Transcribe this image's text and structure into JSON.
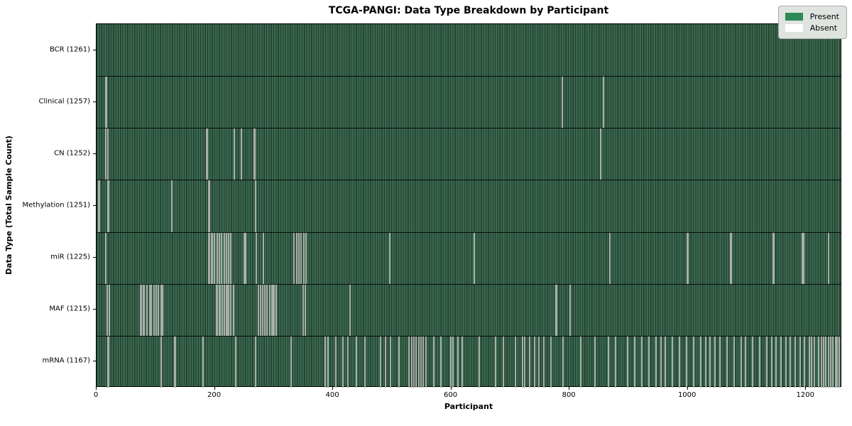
{
  "colors": {
    "present": "#2e8b57",
    "absent": "#ffffff",
    "stripe_light": "#3a684e",
    "stripe_dark": "#213e2e",
    "absent_line": "#a9afa9",
    "legend_bg": "#e0e4e0",
    "legend_border": "#a8aca8"
  },
  "chart_data": {
    "type": "heatmap",
    "title": "TCGA-PANGI: Data Type Breakdown by Participant",
    "xlabel": "Participant",
    "ylabel": "Data Type (Total Sample Count)",
    "x_range": [
      0,
      1261
    ],
    "x_ticks": [
      0,
      200,
      400,
      600,
      800,
      1000,
      1200
    ],
    "grid": false,
    "legend_position": "upper right",
    "legend": {
      "items": [
        {
          "label": "Present",
          "color": "#2e8b57"
        },
        {
          "label": "Absent",
          "color": "#ffffff"
        }
      ]
    },
    "categories": [
      "BCR (1261)",
      "Clinical (1257)",
      "CN (1252)",
      "Methylation (1251)",
      "miR (1225)",
      "MAF (1215)",
      "mRNA (1167)"
    ],
    "series": [
      {
        "name": "BCR",
        "total": 1261,
        "label": "BCR (1261)",
        "absent": []
      },
      {
        "name": "Clinical",
        "total": 1257,
        "label": "Clinical (1257)",
        "absent": [
          16,
          17,
          789,
          859
        ]
      },
      {
        "name": "CN",
        "total": 1252,
        "label": "CN (1252)",
        "absent": [
          16,
          19,
          187,
          188,
          234,
          246,
          267,
          268,
          854
        ]
      },
      {
        "name": "Methylation",
        "total": 1251,
        "label": "Methylation (1251)",
        "absent": [
          4,
          5,
          19,
          20,
          127,
          128,
          190,
          191,
          269,
          270
        ]
      },
      {
        "name": "miR",
        "total": 1225,
        "label": "miR (1225)",
        "absent": [
          16,
          190,
          191,
          195,
          196,
          200,
          204,
          208,
          212,
          216,
          220,
          224,
          228,
          250,
          253,
          271,
          283,
          335,
          339,
          343,
          347,
          351,
          355,
          497,
          640,
          870,
          1001,
          1002,
          1075,
          1076,
          1147,
          1148,
          1196,
          1197,
          1199,
          1240
        ]
      },
      {
        "name": "MAF",
        "total": 1215,
        "label": "MAF (1215)",
        "absent": [
          18,
          22,
          75,
          76,
          80,
          81,
          85,
          86,
          90,
          93,
          97,
          101,
          105,
          109,
          110,
          111,
          112,
          203,
          204,
          208,
          209,
          213,
          217,
          220,
          221,
          224,
          228,
          232,
          274,
          278,
          281,
          282,
          285,
          289,
          293,
          297,
          300,
          301,
          304,
          350,
          354,
          429,
          430,
          779,
          780,
          803
        ]
      },
      {
        "name": "mRNA",
        "total": 1167,
        "label": "mRNA (1167)",
        "absent": [
          19,
          20,
          109,
          132,
          133,
          181,
          236,
          270,
          330,
          388,
          392,
          405,
          418,
          426,
          440,
          455,
          481,
          490,
          498,
          512,
          530,
          534,
          538,
          542,
          546,
          550,
          554,
          558,
          571,
          583,
          600,
          604,
          612,
          620,
          648,
          676,
          690,
          710,
          722,
          726,
          734,
          742,
          750,
          758,
          770,
          790,
          821,
          845,
          868,
          880,
          900,
          912,
          924,
          936,
          948,
          956,
          964,
          976,
          988,
          1000,
          1012,
          1024,
          1032,
          1040,
          1048,
          1056,
          1068,
          1080,
          1092,
          1100,
          1112,
          1124,
          1136,
          1144,
          1152,
          1160,
          1168,
          1176,
          1184,
          1192,
          1200,
          1208,
          1212,
          1216,
          1224,
          1228,
          1232,
          1236,
          1240,
          1244,
          1248,
          1252,
          1255,
          1258
        ]
      }
    ]
  }
}
